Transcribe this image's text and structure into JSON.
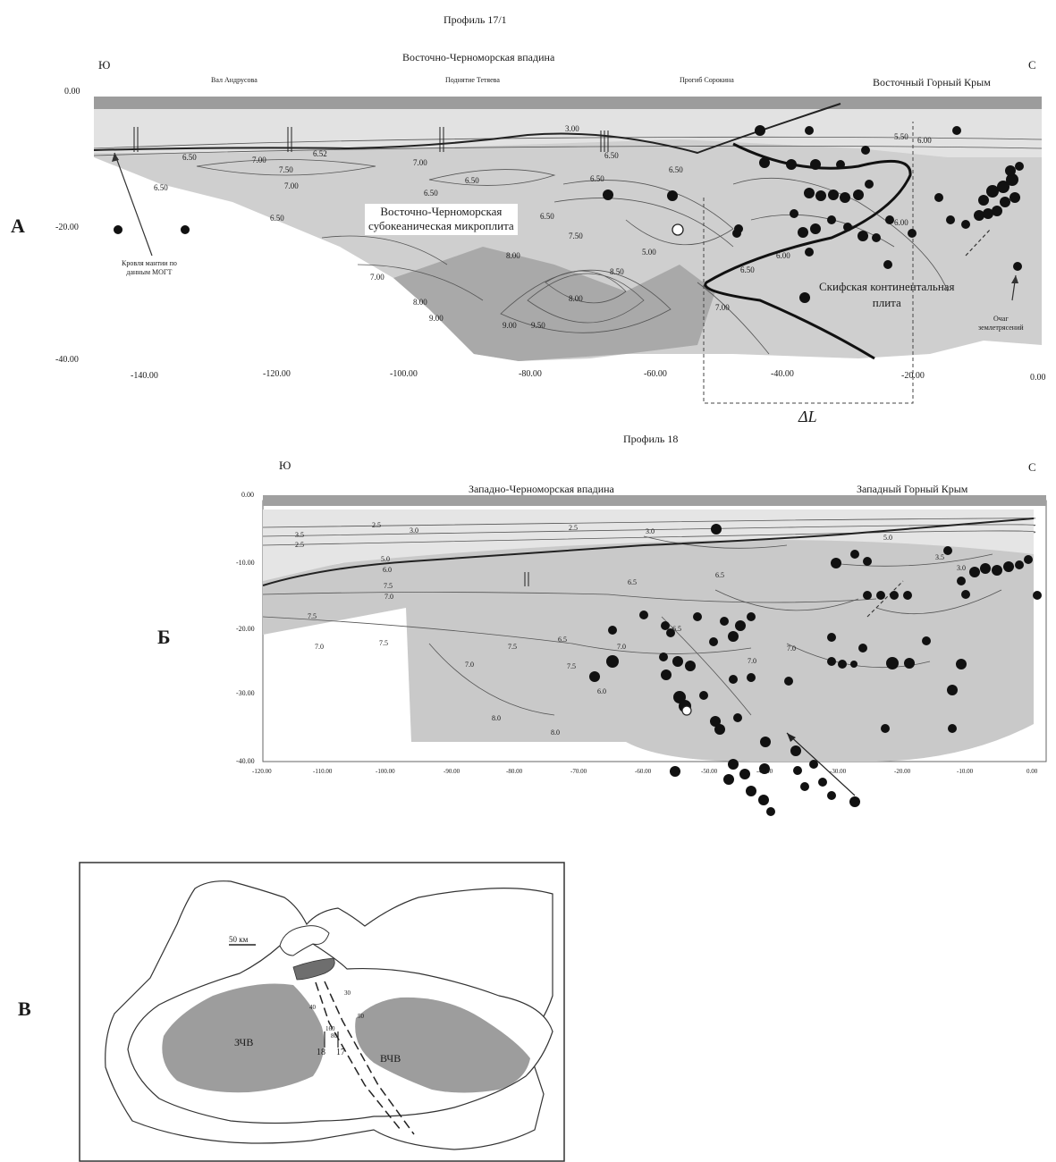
{
  "panel_a": {
    "panel_letter": "А",
    "profile_title": "Профиль 17/1",
    "dir_south": "Ю",
    "dir_north": "С",
    "basin_title": "Восточно-Черноморская впадина",
    "crimea_title": "Восточный Горный Крым",
    "feature_labels": [
      "Вал Андрусова",
      "Поднятие Тетяева",
      "Прогиб Сорокина"
    ],
    "y_ticks": [
      "0.00",
      "-20.00",
      "-40.00"
    ],
    "x_ticks": [
      "-140.00",
      "-120.00",
      "-100.00",
      "-80.00",
      "-60.00",
      "-40.00",
      "-20.00",
      "0.00"
    ],
    "microplate_label": [
      "Восточно-Черноморская",
      "субокеаническая микроплита"
    ],
    "scythian_label": [
      "Скифская континентальная",
      "плита"
    ],
    "mantle_note": [
      "Кровля мантии по",
      "данным МОГТ"
    ],
    "hypocenter_note": [
      "Очаг",
      "землетрясений"
    ],
    "delta_label": "ΔL",
    "contour_labels": [
      "3.00",
      "6.50",
      "7.00",
      "7.50",
      "6.52",
      "7.00",
      "6.50",
      "6.50",
      "7.00",
      "6.50",
      "6.50",
      "6.50",
      "6.50",
      "6.50",
      "7.50",
      "8.00",
      "9.00",
      "9.50",
      "8.00",
      "9.00",
      "8.00",
      "8.50",
      "7.00",
      "7.00",
      "6.50",
      "5.00",
      "6.00",
      "6.50",
      "6.00",
      "5.50",
      "6.00"
    ]
  },
  "panel_b": {
    "panel_letter": "Б",
    "profile_title": "Профиль 18",
    "dir_south": "Ю",
    "dir_north": "С",
    "basin_title": "Западно-Черноморская впадина",
    "crimea_title": "Западный Горный Крым",
    "y_ticks": [
      "0.00",
      "-10.00",
      "-20.00",
      "-30.00",
      "-40.00"
    ],
    "x_ticks": [
      "-120.00",
      "-110.00",
      "-100.00",
      "-90.00",
      "-80.00",
      "-70.00",
      "-60.00",
      "-50.00",
      "-40.00",
      "-30.00",
      "-20.00",
      "-10.00",
      "0.00"
    ],
    "contour_labels": [
      "2.5",
      "3.0",
      "2.5",
      "3.5",
      "2.5",
      "3.0",
      "5.0",
      "6.0",
      "7.5",
      "7.0",
      "7.5",
      "6.5",
      "7.0",
      "7.5",
      "7.0",
      "8.0",
      "7.5",
      "6.5",
      "6.0",
      "7.5",
      "7.0",
      "6.5",
      "7.0",
      "8.0",
      "6.5",
      "7.0",
      "3.5",
      "3.0",
      "5.0"
    ]
  },
  "panel_c": {
    "panel_letter": "В",
    "scale_label": "50 км",
    "west_basin": "ЗЧВ",
    "east_basin": "ВЧВ",
    "profile_numbers": [
      "18",
      "17"
    ],
    "small_labels": [
      "30",
      "40",
      "160",
      "80",
      "50"
    ]
  }
}
